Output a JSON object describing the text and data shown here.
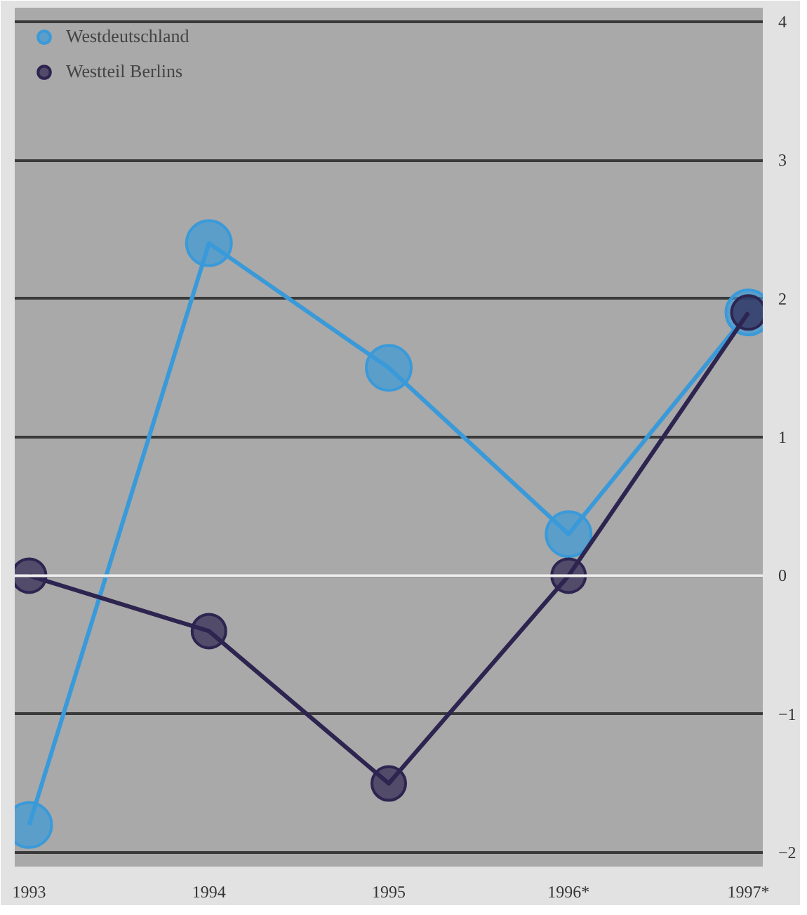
{
  "chart_data": {
    "type": "line",
    "categories": [
      "1993",
      "1994",
      "1995",
      "1996*",
      "1997*"
    ],
    "series": [
      {
        "name": "Westdeutschland",
        "color": "#3a9ad9",
        "values": [
          -1.8,
          2.4,
          1.5,
          0.3,
          1.9
        ]
      },
      {
        "name": "Westteil Berlins",
        "color": "#2e2450",
        "values": [
          0,
          -0.4,
          -1.5,
          0,
          1.9
        ]
      }
    ],
    "ylim": [
      -2.1,
      4.1
    ],
    "yticks": [
      -2,
      -1,
      0,
      1,
      2,
      3,
      4
    ],
    "grid": "y",
    "legend": "top left",
    "marker": "circle",
    "line_style": "solid",
    "ref_lines": [
      {
        "axis": "y",
        "value": 0,
        "color": "#eeeeee"
      }
    ]
  }
}
